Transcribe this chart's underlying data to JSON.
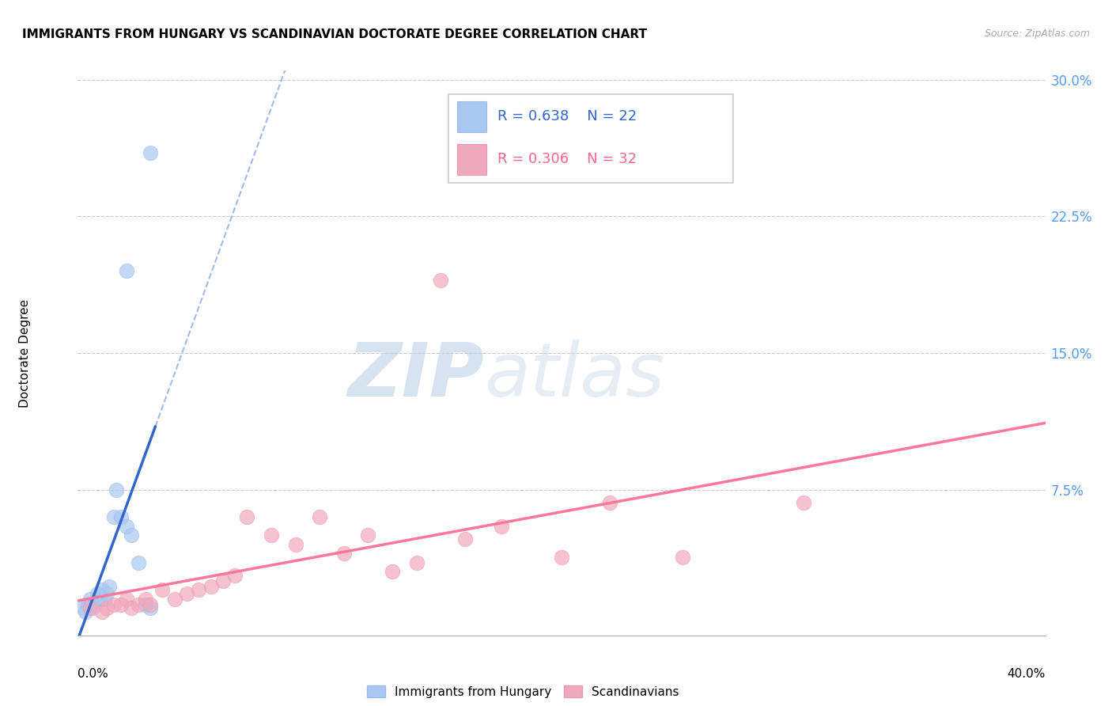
{
  "title": "IMMIGRANTS FROM HUNGARY VS SCANDINAVIAN DOCTORATE DEGREE CORRELATION CHART",
  "source": "Source: ZipAtlas.com",
  "ylabel": "Doctorate Degree",
  "xmin": 0.0,
  "xmax": 0.4,
  "ymin": -0.005,
  "ymax": 0.305,
  "blue_color": "#A8C8F0",
  "pink_color": "#F0A8BC",
  "blue_line_color": "#3366CC",
  "pink_line_color": "#FF7799",
  "right_ytick_vals": [
    0.075,
    0.15,
    0.225,
    0.3
  ],
  "right_ytick_labels": [
    "7.5%",
    "15.0%",
    "22.5%",
    "30.0%"
  ],
  "ytick_color": "#5599FF",
  "blue_R": "0.638",
  "blue_N": "22",
  "pink_R": "0.306",
  "pink_N": "32",
  "watermark_zip": "ZIP",
  "watermark_atlas": "atlas",
  "blue_scatter_x": [
    0.002,
    0.003,
    0.004,
    0.005,
    0.006,
    0.007,
    0.008,
    0.009,
    0.01,
    0.011,
    0.012,
    0.013,
    0.015,
    0.016,
    0.018,
    0.02,
    0.022,
    0.025,
    0.028,
    0.03,
    0.02,
    0.03
  ],
  "blue_scatter_y": [
    0.01,
    0.008,
    0.012,
    0.015,
    0.01,
    0.012,
    0.018,
    0.015,
    0.02,
    0.015,
    0.018,
    0.022,
    0.06,
    0.075,
    0.06,
    0.055,
    0.05,
    0.035,
    0.012,
    0.01,
    0.195,
    0.26
  ],
  "pink_scatter_x": [
    0.005,
    0.01,
    0.012,
    0.015,
    0.018,
    0.02,
    0.022,
    0.025,
    0.028,
    0.03,
    0.035,
    0.04,
    0.045,
    0.05,
    0.055,
    0.06,
    0.065,
    0.07,
    0.08,
    0.09,
    0.1,
    0.11,
    0.12,
    0.13,
    0.14,
    0.15,
    0.16,
    0.175,
    0.2,
    0.22,
    0.25,
    0.3
  ],
  "pink_scatter_y": [
    0.01,
    0.008,
    0.01,
    0.012,
    0.012,
    0.015,
    0.01,
    0.012,
    0.015,
    0.012,
    0.02,
    0.015,
    0.018,
    0.02,
    0.022,
    0.025,
    0.028,
    0.06,
    0.05,
    0.045,
    0.06,
    0.04,
    0.05,
    0.03,
    0.035,
    0.19,
    0.048,
    0.055,
    0.038,
    0.068,
    0.038,
    0.068
  ]
}
